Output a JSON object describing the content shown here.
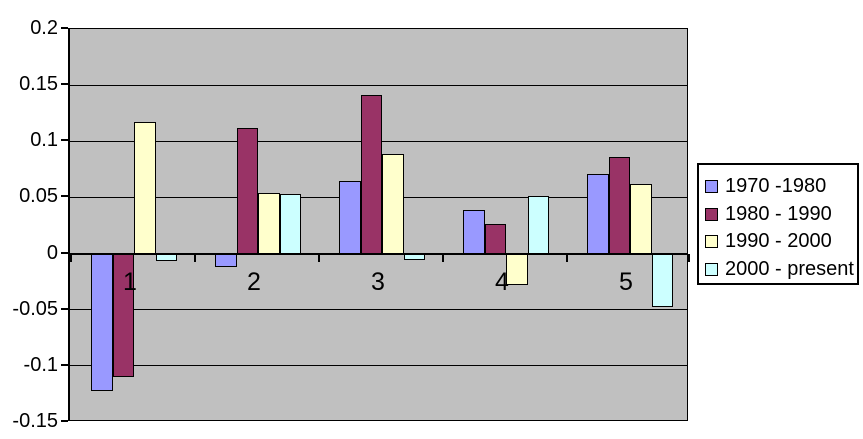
{
  "chart_data": {
    "type": "bar",
    "title": "",
    "categories": [
      "1",
      "2",
      "3",
      "4",
      "5"
    ],
    "series": [
      {
        "name": "1970 -1980",
        "color": "#9999FF",
        "values": [
          -0.122,
          -0.012,
          0.065,
          0.039,
          0.071
        ]
      },
      {
        "name": "1980 - 1990",
        "color": "#993366",
        "values": [
          -0.11,
          0.112,
          0.141,
          0.026,
          0.086
        ]
      },
      {
        "name": "1990 - 2000",
        "color": "#FFFFCC",
        "values": [
          0.117,
          0.054,
          0.089,
          -0.028,
          0.062
        ]
      },
      {
        "name": "2000 - present",
        "color": "#CCFFFF",
        "values": [
          -0.007,
          0.053,
          -0.006,
          0.051,
          -0.048
        ]
      }
    ],
    "ylim": [
      -0.15,
      0.2
    ],
    "ytick_step": 0.05,
    "ytick_labels": [
      "0.2",
      "0.15",
      "0.1",
      "0.05",
      "0",
      "-0.05",
      "-0.1",
      "-0.15"
    ],
    "grid": true,
    "legend_position": "right",
    "colors": {
      "plot_background": "#C0C0C0",
      "gridline": "#000000",
      "bar_border": "#000000",
      "axis": "#000000",
      "legend_background": "#FFFFFF",
      "legend_border": "#000000",
      "chart_background": "#FFFFFF",
      "text": "#000000"
    }
  }
}
